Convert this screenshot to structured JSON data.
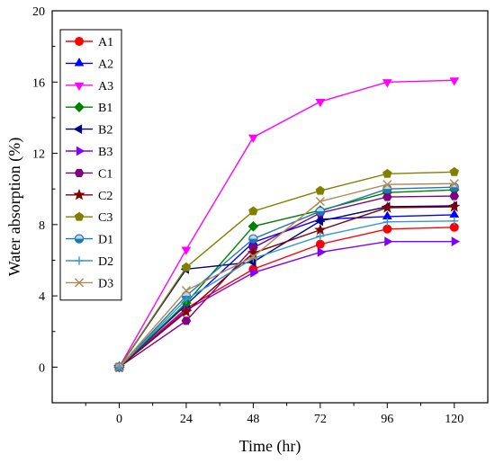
{
  "chart_data": {
    "type": "line",
    "title": "",
    "xlabel": "Time (hr)",
    "ylabel": "Water absorption (%)",
    "x": [
      0,
      24,
      48,
      72,
      96,
      120
    ],
    "xlim": [
      -24,
      132
    ],
    "ylim": [
      -2,
      20
    ],
    "xticks": [
      0,
      24,
      48,
      72,
      96,
      120
    ],
    "yticks": [
      0,
      4,
      8,
      12,
      16,
      20
    ],
    "grid": false,
    "legend_position": "top-left",
    "series": [
      {
        "name": "A1",
        "color": "#ff0000",
        "marker": "circle",
        "values": [
          0,
          3.3,
          5.5,
          6.9,
          7.75,
          7.85
        ]
      },
      {
        "name": "A2",
        "color": "#0000ff",
        "marker": "triangle-up",
        "values": [
          0,
          3.5,
          7.0,
          8.3,
          8.45,
          8.55
        ]
      },
      {
        "name": "A3",
        "color": "#ff00ff",
        "marker": "triangle-down",
        "values": [
          0,
          6.6,
          12.9,
          14.9,
          16.0,
          16.1
        ]
      },
      {
        "name": "B1",
        "color": "#008000",
        "marker": "diamond",
        "values": [
          0,
          3.6,
          7.9,
          8.8,
          9.8,
          9.95
        ]
      },
      {
        "name": "B2",
        "color": "#000080",
        "marker": "triangle-left",
        "values": [
          0,
          5.5,
          5.9,
          8.2,
          9.0,
          9.05
        ]
      },
      {
        "name": "B3",
        "color": "#8000ff",
        "marker": "triangle-right",
        "values": [
          0,
          3.2,
          5.3,
          6.45,
          7.05,
          7.05
        ]
      },
      {
        "name": "C1",
        "color": "#800080",
        "marker": "hexagon",
        "values": [
          0,
          2.6,
          6.7,
          8.65,
          9.55,
          9.6
        ]
      },
      {
        "name": "C2",
        "color": "#800000",
        "marker": "star",
        "values": [
          0,
          3.1,
          6.4,
          7.7,
          8.95,
          9.0
        ]
      },
      {
        "name": "C3",
        "color": "#808000",
        "marker": "pentagon",
        "values": [
          0,
          5.6,
          8.75,
          9.9,
          10.85,
          10.95
        ]
      },
      {
        "name": "D1",
        "color": "#1f78b4",
        "marker": "circle-half",
        "values": [
          0,
          4.0,
          7.2,
          8.75,
          10.0,
          10.1
        ]
      },
      {
        "name": "D2",
        "color": "#3399cc",
        "marker": "plus",
        "values": [
          0,
          3.8,
          6.1,
          7.35,
          8.15,
          8.2
        ]
      },
      {
        "name": "D3",
        "color": "#b08858",
        "marker": "x",
        "values": [
          0,
          4.3,
          6.2,
          9.3,
          10.25,
          10.3
        ]
      }
    ]
  }
}
